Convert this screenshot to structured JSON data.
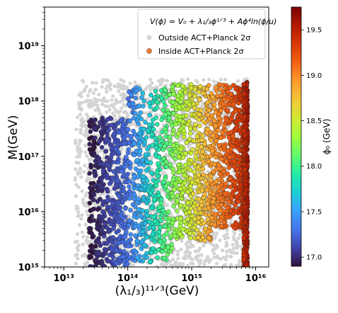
{
  "chart_data": {
    "type": "scatter",
    "title": "",
    "xlabel": "(λ₁/₃)¹¹ᐟ³(GeV)",
    "ylabel": "M(GeV)",
    "xscale": "log",
    "yscale": "log",
    "xlim": [
      5000000000000.0,
      1.6e+16
    ],
    "ylim": [
      1000000000000000.0,
      5e+19
    ],
    "x_ticks": [
      10000000000000.0,
      100000000000000.0,
      1000000000000000.0,
      1e+16
    ],
    "x_tick_labels": [
      "10¹³",
      "10¹⁴",
      "10¹⁵",
      "10¹⁶"
    ],
    "y_ticks": [
      1000000000000000.0,
      1e+16,
      1e+17,
      1e+18,
      1e+19
    ],
    "y_tick_labels": [
      "10¹⁵",
      "10¹⁶",
      "10¹⁷",
      "10¹⁸",
      "10¹⁹"
    ],
    "grid": false,
    "legend": {
      "placement": "top-right",
      "formula": "V(ϕ) = V₀ + λ₁/₃ϕ¹ᐟ³ + Aϕ⁴ln(ϕ/u)",
      "entries": [
        {
          "label": "Outside ACT+Planck 2σ",
          "color": "#d4d4d4"
        },
        {
          "label": "Inside ACT+Planck 2σ",
          "color": "#f07a30"
        }
      ]
    },
    "colorbar": {
      "label": "ϕ₀ (GeV)",
      "min": 16.9,
      "max": 19.75,
      "ticks": [
        17.0,
        17.5,
        18.0,
        18.5,
        19.0,
        19.5
      ],
      "tick_labels": [
        "17.0",
        "17.5",
        "18.0",
        "18.5",
        "19.0",
        "19.5"
      ],
      "colormap": [
        "#30123b",
        "#4145ab",
        "#4675ed",
        "#39a2fc",
        "#1bcfd4",
        "#24eca6",
        "#61fc6c",
        "#a4fc3c",
        "#d1e834",
        "#f3c63a",
        "#fe9b2d",
        "#f36315",
        "#d93806",
        "#b11901",
        "#7a0403"
      ]
    },
    "series": [
      {
        "name": "Outside ACT+Planck 2σ",
        "color": "#d4d4d4",
        "regions": [
          {
            "x_range": [
              15000000000000.0,
              6500000000000000.0
            ],
            "y_range": [
              1000000000000000.0,
              2.5e+18
            ],
            "density": "high"
          },
          {
            "x_range": [
              6500000000000000.0,
              7500000000000000.0
            ],
            "y_range": [
              1000000000000000.0,
              2.5e+18
            ],
            "density": "very-high"
          }
        ]
      },
      {
        "name": "Inside ACT+Planck 2σ",
        "color_by": "log10(ϕ₀/GeV)",
        "regions": [
          {
            "x_range": [
              25000000000000.0,
              100000000000000.0
            ],
            "y_range": [
              1000000000000000.0,
              5e+17
            ],
            "phi0_range": [
              16.9,
              17.3
            ]
          },
          {
            "x_range": [
              100000000000000.0,
              500000000000000.0
            ],
            "y_range": [
              1200000000000000.0,
              1.8e+18
            ],
            "phi0_range": [
              17.3,
              18.2
            ]
          },
          {
            "x_range": [
              500000000000000.0,
              2000000000000000.0
            ],
            "y_range": [
              3000000000000000.0,
              2e+18
            ],
            "phi0_range": [
              18.2,
              18.9
            ]
          },
          {
            "x_range": [
              2000000000000000.0,
              6500000000000000.0
            ],
            "y_range": [
              5000000000000000.0,
              2e+18
            ],
            "phi0_range": [
              18.9,
              19.4
            ]
          },
          {
            "x_range": [
              6500000000000000.0,
              7500000000000000.0
            ],
            "y_range": [
              1000000000000000.0,
              2.2e+18
            ],
            "phi0_range": [
              19.4,
              19.6
            ]
          }
        ]
      }
    ]
  }
}
